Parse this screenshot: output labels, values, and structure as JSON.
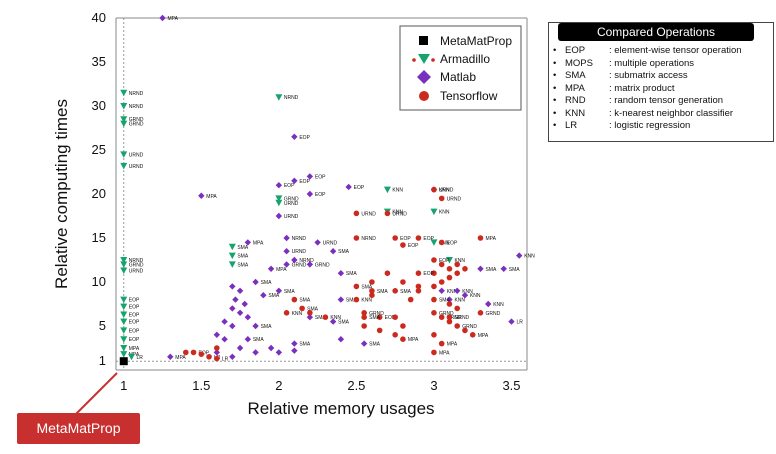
{
  "chart_data": {
    "type": "scatter",
    "xlabel": "Relative memory usages",
    "ylabel": "Relative computing times",
    "xlim": [
      0.95,
      3.6
    ],
    "ylim": [
      0,
      40
    ],
    "x_ticks": [
      "1",
      "1.5",
      "2",
      "2.5",
      "3",
      "3.5"
    ],
    "y_ticks": [
      "1",
      "5",
      "10",
      "15",
      "20",
      "25",
      "30",
      "35",
      "40"
    ],
    "reference_lines": {
      "x": 1,
      "y": 1
    },
    "legend_position": "top-right-inside",
    "series": [
      {
        "name": "MetaMatProp",
        "marker": "square",
        "color": "#000000",
        "points": [
          {
            "x": 1.0,
            "y": 1.0
          }
        ]
      },
      {
        "name": "Armadillo",
        "marker": "triangle-down",
        "color": "#18a36e",
        "points": [
          {
            "x": 1.0,
            "y": 31.5,
            "label": "NRND"
          },
          {
            "x": 1.0,
            "y": 30.0,
            "label": "NRND"
          },
          {
            "x": 1.0,
            "y": 28.5,
            "label": "GRND"
          },
          {
            "x": 1.0,
            "y": 28.0,
            "label": "GRND"
          },
          {
            "x": 1.0,
            "y": 24.5,
            "label": "URND"
          },
          {
            "x": 1.0,
            "y": 23.2,
            "label": "URND"
          },
          {
            "x": 1.0,
            "y": 12.5,
            "label": "NRND"
          },
          {
            "x": 1.0,
            "y": 12.0,
            "label": "GRND"
          },
          {
            "x": 1.0,
            "y": 11.3,
            "label": "URND"
          },
          {
            "x": 1.0,
            "y": 8.0,
            "label": "EOP"
          },
          {
            "x": 1.0,
            "y": 7.2,
            "label": "EOP"
          },
          {
            "x": 1.0,
            "y": 6.3,
            "label": "EOP"
          },
          {
            "x": 1.0,
            "y": 5.5,
            "label": "EOP"
          },
          {
            "x": 1.0,
            "y": 4.5,
            "label": "EOP"
          },
          {
            "x": 1.0,
            "y": 3.5,
            "label": "EOP"
          },
          {
            "x": 1.0,
            "y": 2.5,
            "label": "MPA"
          },
          {
            "x": 1.0,
            "y": 1.8,
            "label": "MPA"
          },
          {
            "x": 1.05,
            "y": 1.5,
            "label": "LR"
          },
          {
            "x": 1.7,
            "y": 14.0,
            "label": "SMA"
          },
          {
            "x": 1.7,
            "y": 13.0,
            "label": "SMA"
          },
          {
            "x": 1.7,
            "y": 12.0,
            "label": "SMA"
          },
          {
            "x": 2.0,
            "y": 31.0,
            "label": "NRND"
          },
          {
            "x": 2.0,
            "y": 19.5,
            "label": "GRND"
          },
          {
            "x": 2.0,
            "y": 19.0,
            "label": "URND"
          },
          {
            "x": 2.7,
            "y": 20.5,
            "label": "KNN"
          },
          {
            "x": 2.7,
            "y": 18.0,
            "label": "KNN"
          },
          {
            "x": 3.0,
            "y": 18.0,
            "label": "KNN"
          },
          {
            "x": 3.0,
            "y": 14.5,
            "label": "KNN"
          },
          {
            "x": 3.1,
            "y": 12.5,
            "label": "KNN"
          }
        ]
      },
      {
        "name": "Matlab",
        "marker": "diamond",
        "color": "#7b2fbf",
        "points": [
          {
            "x": 1.25,
            "y": 40.0,
            "label": "MPA"
          },
          {
            "x": 1.5,
            "y": 19.8,
            "label": "MPA"
          },
          {
            "x": 2.1,
            "y": 26.5,
            "label": "EOP"
          },
          {
            "x": 2.2,
            "y": 22.0,
            "label": "EOP"
          },
          {
            "x": 2.1,
            "y": 21.5,
            "label": "EOP"
          },
          {
            "x": 2.0,
            "y": 21.0,
            "label": "EOP"
          },
          {
            "x": 2.2,
            "y": 20.0,
            "label": "EOP"
          },
          {
            "x": 2.45,
            "y": 20.8,
            "label": "EOP"
          },
          {
            "x": 3.0,
            "y": 20.5,
            "label": "KNN"
          },
          {
            "x": 2.0,
            "y": 17.5,
            "label": "URND"
          },
          {
            "x": 2.05,
            "y": 15.0,
            "label": "NRND"
          },
          {
            "x": 2.25,
            "y": 14.5,
            "label": "URND"
          },
          {
            "x": 1.8,
            "y": 14.5,
            "label": "MPA"
          },
          {
            "x": 2.05,
            "y": 13.5,
            "label": "URND"
          },
          {
            "x": 2.1,
            "y": 12.5,
            "label": "NRND"
          },
          {
            "x": 2.05,
            "y": 12.0,
            "label": "GRND"
          },
          {
            "x": 2.2,
            "y": 12.0,
            "label": "GRND"
          },
          {
            "x": 2.35,
            "y": 13.5,
            "label": "SMA"
          },
          {
            "x": 1.95,
            "y": 11.5,
            "label": "MPA"
          },
          {
            "x": 1.85,
            "y": 10.0,
            "label": "SMA"
          },
          {
            "x": 2.4,
            "y": 11.0,
            "label": "SMA"
          },
          {
            "x": 2.0,
            "y": 9.0,
            "label": "SMA"
          },
          {
            "x": 1.9,
            "y": 8.5,
            "label": "SMA"
          },
          {
            "x": 2.4,
            "y": 8.0,
            "label": "SMA"
          },
          {
            "x": 1.7,
            "y": 9.5
          },
          {
            "x": 1.75,
            "y": 9.0
          },
          {
            "x": 1.72,
            "y": 8.0
          },
          {
            "x": 1.78,
            "y": 7.5
          },
          {
            "x": 1.7,
            "y": 7.0
          },
          {
            "x": 1.75,
            "y": 6.5
          },
          {
            "x": 1.8,
            "y": 6.0
          },
          {
            "x": 1.65,
            "y": 5.5
          },
          {
            "x": 1.7,
            "y": 5.0
          },
          {
            "x": 2.2,
            "y": 6.0,
            "label": "SMA"
          },
          {
            "x": 1.85,
            "y": 5.0,
            "label": "SMA"
          },
          {
            "x": 1.6,
            "y": 4.0
          },
          {
            "x": 1.65,
            "y": 3.5
          },
          {
            "x": 1.8,
            "y": 3.5,
            "label": "SMA"
          },
          {
            "x": 1.75,
            "y": 2.5
          },
          {
            "x": 1.85,
            "y": 2.0
          },
          {
            "x": 1.95,
            "y": 2.5
          },
          {
            "x": 2.0,
            "y": 2.0
          },
          {
            "x": 2.1,
            "y": 2.2
          },
          {
            "x": 1.6,
            "y": 2.0
          },
          {
            "x": 1.7,
            "y": 1.5
          },
          {
            "x": 2.35,
            "y": 5.5,
            "label": "SMA"
          },
          {
            "x": 2.4,
            "y": 3.5
          },
          {
            "x": 2.55,
            "y": 3.0,
            "label": "SMA"
          },
          {
            "x": 2.1,
            "y": 3.0,
            "label": "SMA"
          },
          {
            "x": 3.05,
            "y": 9.0,
            "label": "KNN"
          },
          {
            "x": 3.1,
            "y": 8.0,
            "label": "KNN"
          },
          {
            "x": 3.15,
            "y": 9.0,
            "label": "KNN"
          },
          {
            "x": 3.2,
            "y": 8.5,
            "label": "KNN"
          },
          {
            "x": 3.35,
            "y": 7.5,
            "label": "KNN"
          },
          {
            "x": 3.5,
            "y": 5.5,
            "label": "LR"
          },
          {
            "x": 3.55,
            "y": 13.0,
            "label": "KNN"
          },
          {
            "x": 3.45,
            "y": 11.5,
            "label": "SMA"
          },
          {
            "x": 3.3,
            "y": 11.5,
            "label": "SMA"
          },
          {
            "x": 1.3,
            "y": 1.5,
            "label": "MPA"
          }
        ]
      },
      {
        "name": "Tensorflow",
        "marker": "circle",
        "color": "#cc2a1e",
        "points": [
          {
            "x": 2.5,
            "y": 17.8,
            "label": "URND"
          },
          {
            "x": 2.7,
            "y": 17.8,
            "label": "URND"
          },
          {
            "x": 3.0,
            "y": 20.5,
            "label": "URND"
          },
          {
            "x": 3.05,
            "y": 19.5,
            "label": "URND"
          },
          {
            "x": 2.5,
            "y": 15.0,
            "label": "NRND"
          },
          {
            "x": 2.75,
            "y": 15.0,
            "label": "EOP"
          },
          {
            "x": 2.9,
            "y": 15.0,
            "label": "EOP"
          },
          {
            "x": 3.05,
            "y": 14.5,
            "label": "EOP"
          },
          {
            "x": 3.3,
            "y": 15.0,
            "label": "MPA"
          },
          {
            "x": 2.8,
            "y": 14.2,
            "label": "EOP"
          },
          {
            "x": 3.0,
            "y": 12.5,
            "label": "EOP"
          },
          {
            "x": 3.05,
            "y": 12.0
          },
          {
            "x": 3.1,
            "y": 11.5
          },
          {
            "x": 3.15,
            "y": 11.0
          },
          {
            "x": 3.0,
            "y": 11.0
          },
          {
            "x": 3.1,
            "y": 10.5
          },
          {
            "x": 3.05,
            "y": 10.0
          },
          {
            "x": 3.15,
            "y": 12.0
          },
          {
            "x": 3.2,
            "y": 11.5
          },
          {
            "x": 2.9,
            "y": 11.0,
            "label": "EOP"
          },
          {
            "x": 2.7,
            "y": 11.0
          },
          {
            "x": 2.6,
            "y": 10.0
          },
          {
            "x": 2.8,
            "y": 10.0
          },
          {
            "x": 2.9,
            "y": 9.5
          },
          {
            "x": 2.5,
            "y": 9.5,
            "label": "SMA"
          },
          {
            "x": 2.6,
            "y": 9.0,
            "label": "SMA"
          },
          {
            "x": 2.75,
            "y": 9.0,
            "label": "SMA"
          },
          {
            "x": 2.9,
            "y": 9.0
          },
          {
            "x": 3.0,
            "y": 9.5
          },
          {
            "x": 2.5,
            "y": 8.0,
            "label": "KNN"
          },
          {
            "x": 2.6,
            "y": 8.5
          },
          {
            "x": 2.85,
            "y": 8.0
          },
          {
            "x": 3.0,
            "y": 8.0,
            "label": "SMA"
          },
          {
            "x": 3.1,
            "y": 7.5
          },
          {
            "x": 3.15,
            "y": 7.0
          },
          {
            "x": 2.55,
            "y": 6.5,
            "label": "GRND"
          },
          {
            "x": 2.65,
            "y": 6.0,
            "label": "EOP"
          },
          {
            "x": 2.75,
            "y": 6.0
          },
          {
            "x": 2.55,
            "y": 6.0,
            "label": "SMA"
          },
          {
            "x": 2.3,
            "y": 6.0,
            "label": "KNN"
          },
          {
            "x": 2.05,
            "y": 6.5,
            "label": "KNN"
          },
          {
            "x": 2.1,
            "y": 8.0,
            "label": "SMA"
          },
          {
            "x": 2.15,
            "y": 7.0,
            "label": "SMA"
          },
          {
            "x": 2.2,
            "y": 6.5
          },
          {
            "x": 2.55,
            "y": 5.0
          },
          {
            "x": 2.65,
            "y": 4.5
          },
          {
            "x": 2.75,
            "y": 4.0
          },
          {
            "x": 3.0,
            "y": 6.5,
            "label": "GRND"
          },
          {
            "x": 3.05,
            "y": 6.0,
            "label": "GRND"
          },
          {
            "x": 3.1,
            "y": 5.5
          },
          {
            "x": 3.15,
            "y": 5.0,
            "label": "GRND"
          },
          {
            "x": 3.2,
            "y": 4.5
          },
          {
            "x": 3.25,
            "y": 4.0,
            "label": "MPA"
          },
          {
            "x": 3.0,
            "y": 4.0
          },
          {
            "x": 3.05,
            "y": 3.0,
            "label": "MPA"
          },
          {
            "x": 3.0,
            "y": 2.0,
            "label": "MPA"
          },
          {
            "x": 2.8,
            "y": 5.0
          },
          {
            "x": 2.8,
            "y": 3.5,
            "label": "MPA"
          },
          {
            "x": 3.1,
            "y": 6.0,
            "label": "GRND"
          },
          {
            "x": 3.3,
            "y": 6.5,
            "label": "GRND"
          },
          {
            "x": 1.45,
            "y": 2.0,
            "label": "EOP"
          },
          {
            "x": 1.5,
            "y": 1.8
          },
          {
            "x": 1.55,
            "y": 1.5,
            "label": "LR"
          },
          {
            "x": 1.6,
            "y": 1.3,
            "label": "LR"
          },
          {
            "x": 1.4,
            "y": 2.0
          },
          {
            "x": 1.6,
            "y": 2.5
          }
        ]
      }
    ]
  },
  "legend": {
    "items": [
      {
        "name": "MetaMatProp"
      },
      {
        "name": "Armadillo"
      },
      {
        "name": "Matlab"
      },
      {
        "name": "Tensorflow"
      }
    ]
  },
  "operations_box": {
    "title": "Compared Operations",
    "rows": [
      {
        "abbr": "EOP",
        "desc": ": element-wise tensor operation"
      },
      {
        "abbr": "MOPS",
        "desc": ": multiple operations"
      },
      {
        "abbr": "SMA",
        "desc": ": submatrix access"
      },
      {
        "abbr": "MPA",
        "desc": ": matrix product"
      },
      {
        "abbr": "RND",
        "desc": ": random tensor generation"
      },
      {
        "abbr": "KNN",
        "desc": ": k-nearest neighbor classifier"
      },
      {
        "abbr": "LR",
        "desc": ": logistic regression"
      }
    ]
  },
  "callout": {
    "label": "MetaMatProp"
  }
}
